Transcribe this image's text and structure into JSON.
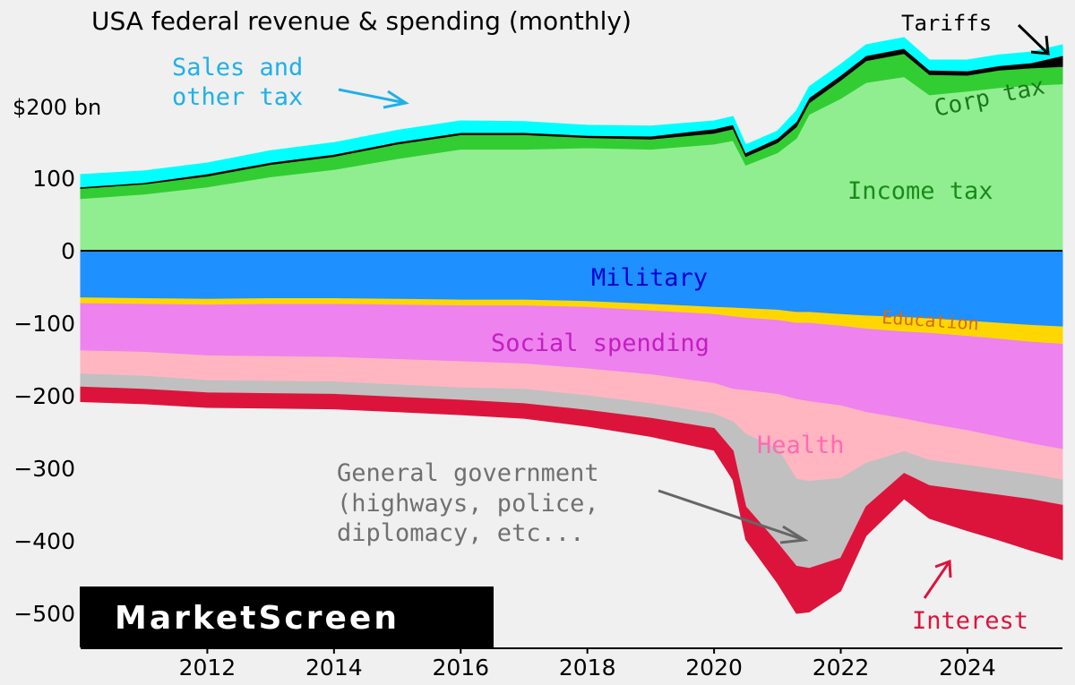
{
  "chart_data": {
    "type": "area",
    "stacked": true,
    "title": "USA federal revenue & spending (monthly)",
    "ylabel_unit": "$200 bn",
    "ylim": [
      -520,
      290
    ],
    "xlim": [
      2010.0,
      2025.5
    ],
    "x_ticks": [
      2012,
      2014,
      2016,
      2018,
      2020,
      2022,
      2024
    ],
    "y_ticks": [
      {
        "value": 100,
        "label": "100"
      },
      {
        "value": 0,
        "label": "0"
      },
      {
        "value": -100,
        "label": "−100"
      },
      {
        "value": -200,
        "label": "−200"
      },
      {
        "value": -300,
        "label": "−300"
      },
      {
        "value": -400,
        "label": "−400"
      },
      {
        "value": -500,
        "label": "−500"
      }
    ],
    "x": [
      2010.0,
      2011.0,
      2012.0,
      2013.0,
      2014.0,
      2015.0,
      2016.0,
      2017.0,
      2018.0,
      2019.0,
      2020.0,
      2020.3,
      2020.5,
      2021.0,
      2021.3,
      2021.5,
      2022.0,
      2022.4,
      2023.0,
      2023.4,
      2024.0,
      2024.5,
      2025.0,
      2025.5
    ],
    "revenue_series": [
      {
        "name": "Income tax",
        "color": "#90ee90",
        "values": [
          72,
          78,
          88,
          102,
          112,
          127,
          140,
          140,
          142,
          140,
          147,
          152,
          118,
          135,
          155,
          188,
          210,
          232,
          240,
          215,
          220,
          225,
          228,
          230
        ]
      },
      {
        "name": "Corp tax",
        "color": "#32cd32",
        "values": [
          14,
          14,
          15,
          17,
          18,
          20,
          20,
          20,
          14,
          14,
          15,
          16,
          12,
          14,
          16,
          16,
          25,
          30,
          32,
          28,
          22,
          24,
          24,
          24
        ]
      },
      {
        "name": "Tariffs",
        "color": "#000000",
        "values": [
          2,
          2,
          3,
          3,
          3,
          3,
          3,
          3,
          3,
          4,
          6,
          6,
          5,
          6,
          7,
          7,
          7,
          7,
          7,
          6,
          6,
          6,
          7,
          15
        ]
      },
      {
        "name": "Sales and other tax",
        "color": "#00ffff",
        "values": [
          17,
          16,
          15,
          16,
          16,
          16,
          16,
          15,
          14,
          14,
          11,
          11,
          11,
          10,
          15,
          15,
          15,
          15,
          15,
          14,
          15,
          15,
          15,
          15
        ]
      }
    ],
    "spending_series": [
      {
        "name": "Military",
        "color": "#1e90ff",
        "values": [
          -65,
          -66,
          -67,
          -66,
          -66,
          -67,
          -68,
          -68,
          -70,
          -74,
          -78,
          -79,
          -80,
          -82,
          -85,
          -85,
          -88,
          -90,
          -92,
          -94,
          -97,
          -100,
          -103,
          -105
        ]
      },
      {
        "name": "Education",
        "color": "#ffd700",
        "values": [
          -8,
          -8,
          -8,
          -8,
          -8,
          -8,
          -8,
          -8,
          -8,
          -9,
          -10,
          -12,
          -13,
          -14,
          -15,
          -15,
          -16,
          -18,
          -20,
          -20,
          -21,
          -22,
          -23,
          -24
        ]
      },
      {
        "name": "Social spending",
        "color": "#ee82ee",
        "values": [
          -65,
          -66,
          -70,
          -72,
          -73,
          -75,
          -77,
          -80,
          -85,
          -88,
          -95,
          -100,
          -100,
          -102,
          -105,
          -108,
          -110,
          -115,
          -120,
          -125,
          -130,
          -135,
          -140,
          -145
        ]
      },
      {
        "name": "Health",
        "color": "#ffb6c1",
        "values": [
          -32,
          -33,
          -34,
          -34,
          -34,
          -35,
          -36,
          -35,
          -37,
          -40,
          -42,
          -45,
          -60,
          -75,
          -110,
          -110,
          -100,
          -70,
          -45,
          -50,
          -48,
          -45,
          -42,
          -42
        ]
      },
      {
        "name": "General government (highways, police, diplomacy, etc...)",
        "color": "#c0c0c0",
        "values": [
          -18,
          -18,
          -17,
          -17,
          -17,
          -17,
          -17,
          -20,
          -20,
          -20,
          -20,
          -40,
          -100,
          -130,
          -120,
          -120,
          -110,
          -60,
          -30,
          -35,
          -35,
          -35,
          -35,
          -35
        ]
      },
      {
        "name": "Interest",
        "color": "#dc143c",
        "values": [
          -20,
          -20,
          -20,
          -20,
          -20,
          -20,
          -20,
          -20,
          -22,
          -25,
          -30,
          -40,
          -45,
          -55,
          -65,
          -60,
          -45,
          -40,
          -35,
          -45,
          -55,
          -62,
          -70,
          -75
        ]
      }
    ],
    "annotations": [
      {
        "text_lines": [
          "Sales and",
          "other tax"
        ],
        "color": "#20b0e8"
      },
      {
        "text_lines": [
          "Tariffs"
        ],
        "color": "#000000"
      },
      {
        "text_lines": [
          "Corp tax"
        ],
        "color": "#1a7a1a"
      },
      {
        "text_lines": [
          "Income tax"
        ],
        "color": "#1a8a1a"
      },
      {
        "text_lines": [
          "Military"
        ],
        "color": "#0000cd"
      },
      {
        "text_lines": [
          "Education"
        ],
        "color": "#d2691e"
      },
      {
        "text_lines": [
          "Social spending"
        ],
        "color": "#c020c0"
      },
      {
        "text_lines": [
          "Health"
        ],
        "color": "#ff69b4"
      },
      {
        "text_lines": [
          "General government",
          "(highways, police,",
          "diplomacy, etc..."
        ],
        "color": "#707070"
      },
      {
        "text_lines": [
          "Interest"
        ],
        "color": "#dc143c"
      }
    ]
  },
  "watermark": {
    "text": "MarketScreen"
  }
}
